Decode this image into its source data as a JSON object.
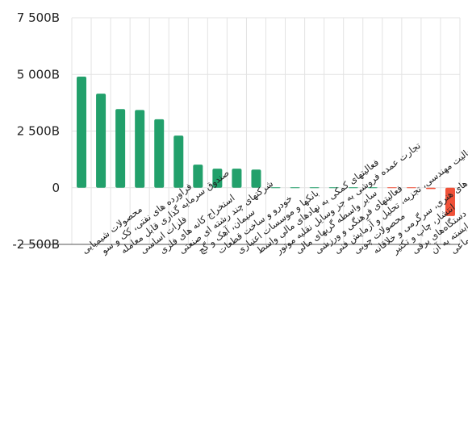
{
  "chart_data": {
    "type": "bar",
    "categories": [
      "محصولات شیمیایی",
      "فراورده های نفتی، کک و سو",
      "صندوق سرمایه گذاری قابل معامله",
      "فلزات اساسی",
      "استخراج کانه های فلزی",
      "شرکتهای چند رشته ای صنعتی",
      "سیمان، آهک و گچ",
      "خودرو و ساخت قطعات",
      "بانکها و موسسات اعتباری",
      "فعالیتهای کمکی به نهادهای مالی واسط",
      "تجارت عمده فروشی به جز وسایل نقلیه موتور",
      "سایر واسطه گریهای مالی",
      "فعالیتهای فرهنگی و ورزشی",
      "فعالیت مهندسی، تجزیه، تحلیل و آزمایش فنی",
      "محصولات چوبی",
      "فعالیت های هنری، سرگرمی و خلاقانه",
      "انتشار، چاپ و تکثیر",
      "ماشین آلات و دستگاه‌های برقی",
      "رایانه و فعالیت‌های وابسته به آن",
      "بیمه وصندوق بازنشستگی به جزتامین اجتماعی"
    ],
    "values": [
      4900,
      4150,
      3470,
      3430,
      3020,
      2300,
      1020,
      840,
      840,
      800,
      0,
      0,
      0,
      0,
      0,
      0,
      -10,
      -20,
      -60,
      -1250
    ],
    "y_tick_labels": [
      "7 500B",
      "5 000B",
      "2 500B",
      "0",
      "-2 500B"
    ],
    "y_ticks": [
      7500,
      5000,
      2500,
      0,
      -2500
    ],
    "ylim": [
      -2500,
      7500
    ],
    "title": "",
    "xlabel": "",
    "ylabel": "",
    "grid": true,
    "legend": "none",
    "colors": {
      "positive": "#22a06b",
      "negative": "#f05138"
    }
  }
}
